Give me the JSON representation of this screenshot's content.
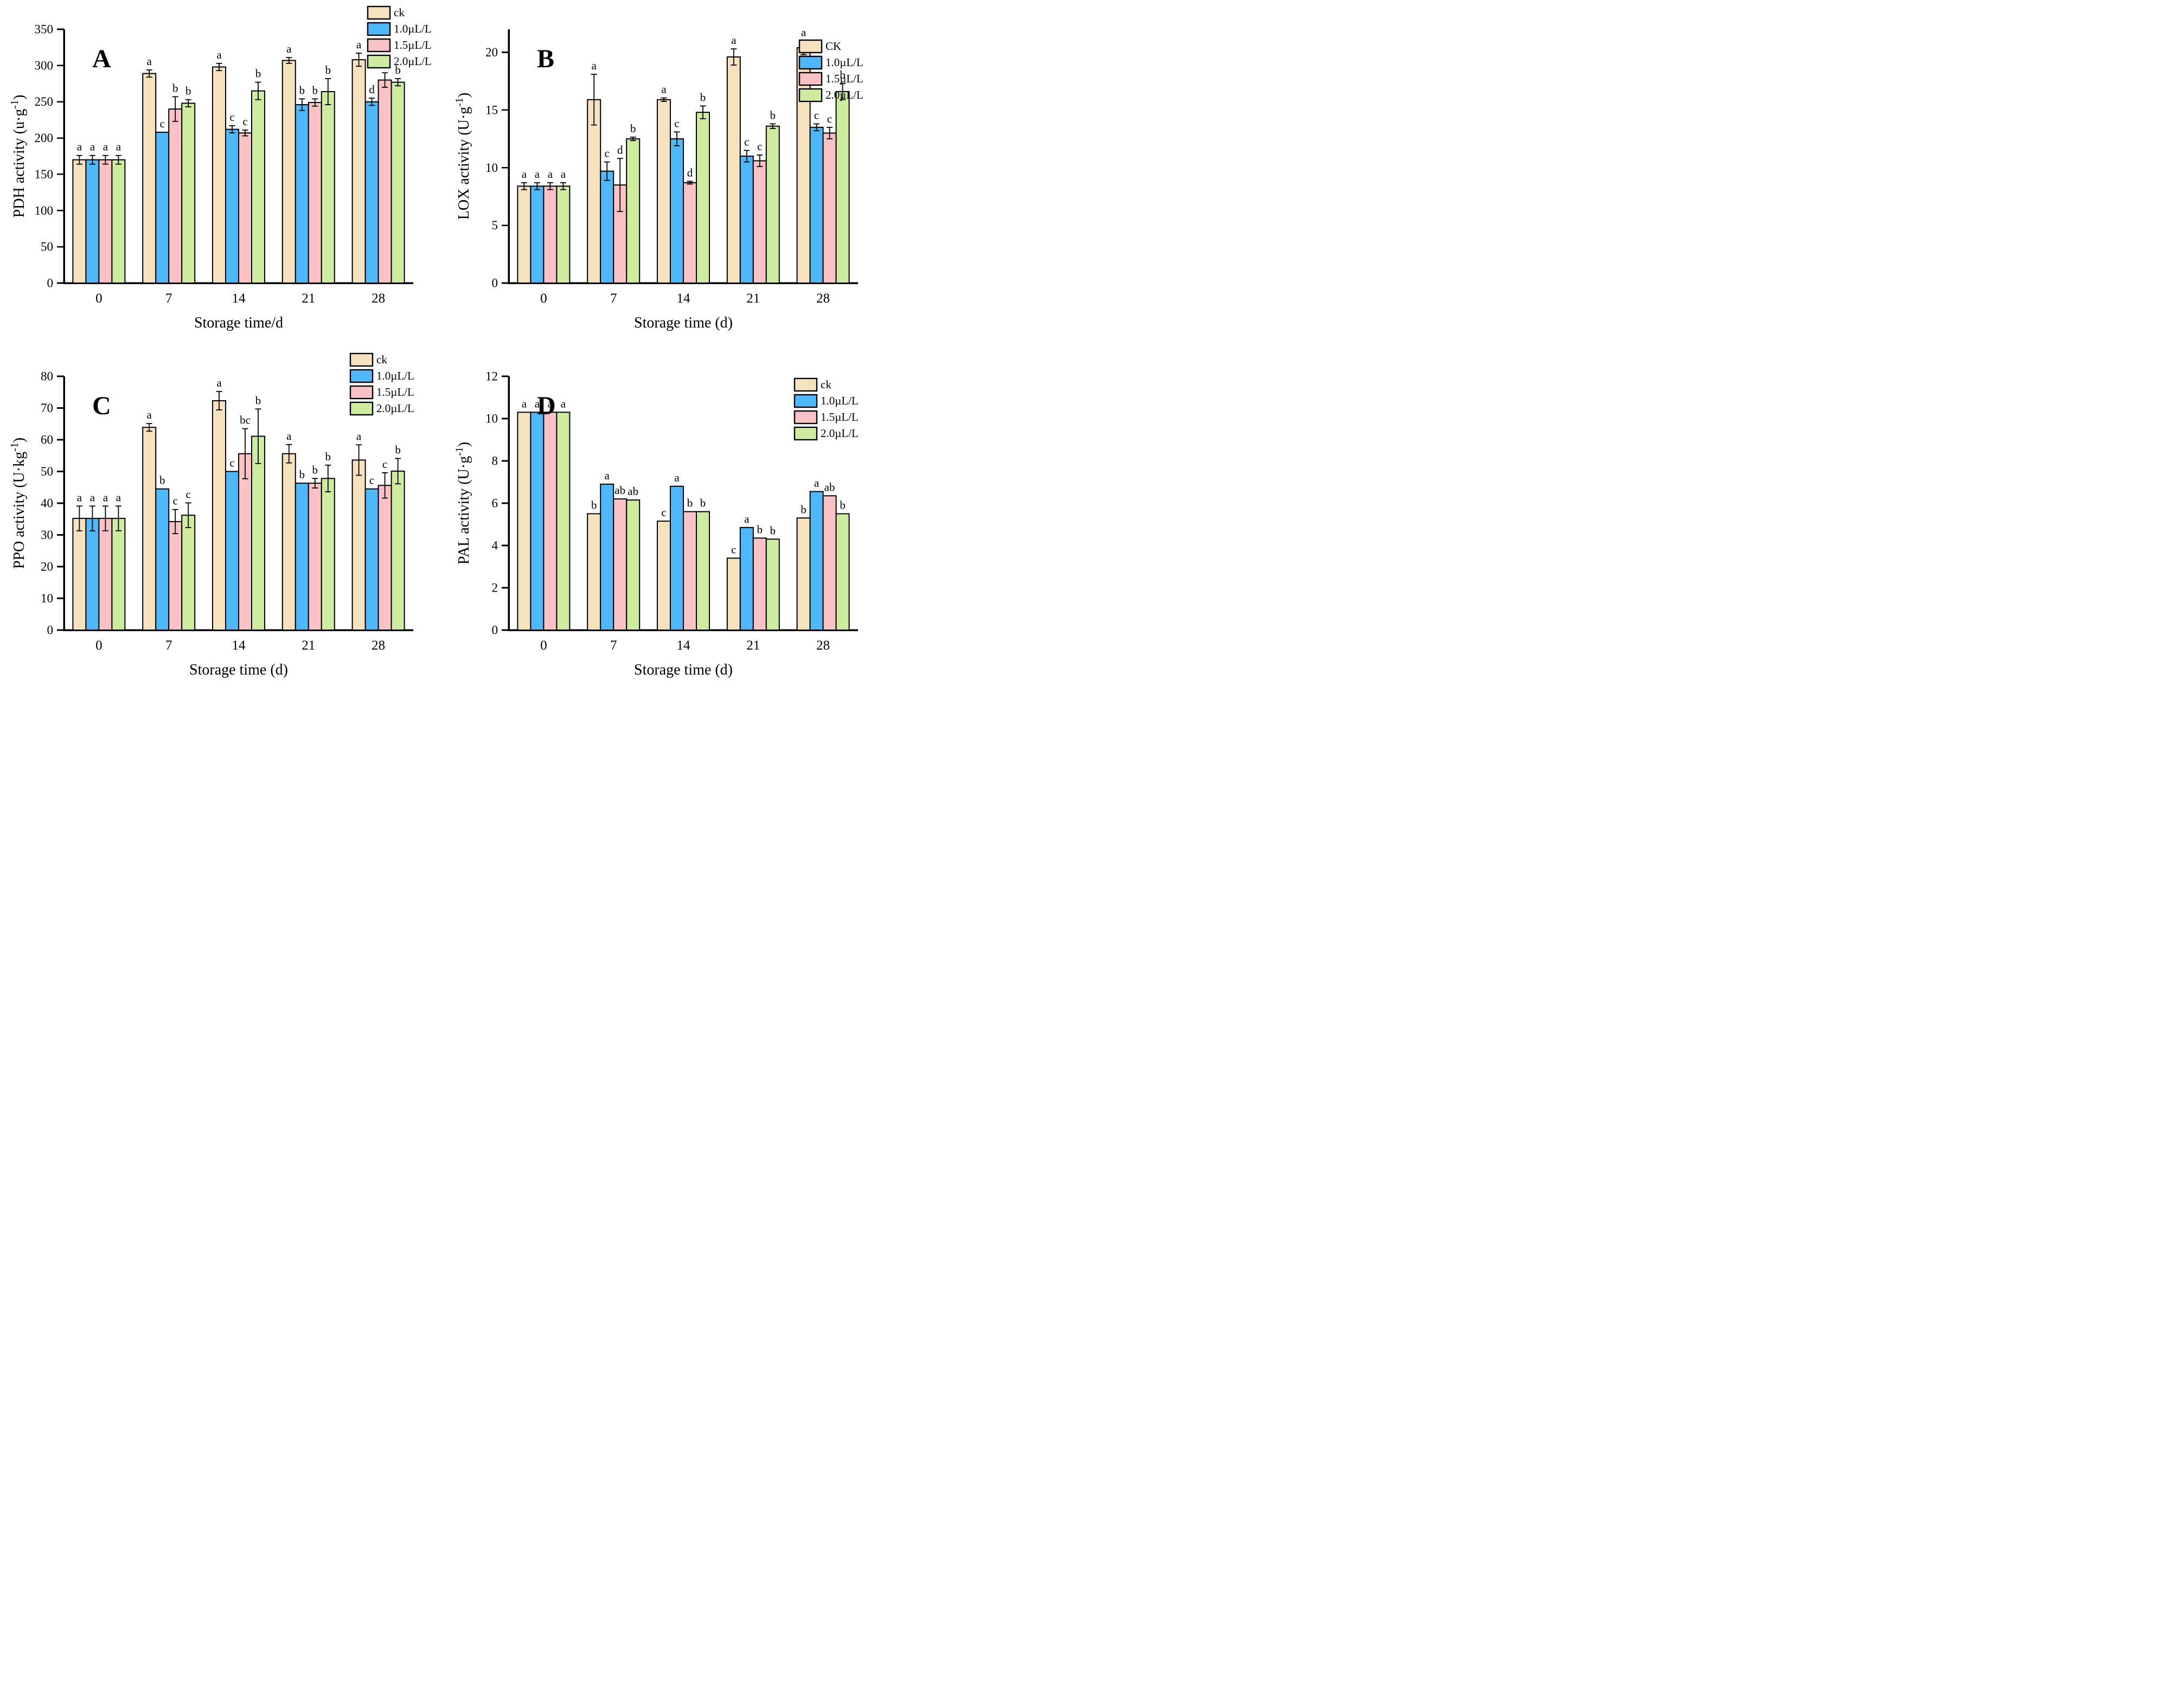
{
  "figure": {
    "background": "#ffffff",
    "text_color": "#000000"
  },
  "colors": {
    "ck": "#F6E3BD",
    "blue": "#4DB9FB",
    "pink": "#FBC2C5",
    "green": "#CDEC9E",
    "outline": "#000000"
  },
  "chart_data": [
    {
      "type": "bar",
      "panel_label": "A",
      "title": "",
      "xlabel": "Storage time/d",
      "ylabel": "PDH activity (u·g⁻¹)",
      "categories": [
        "0",
        "7",
        "14",
        "21",
        "28"
      ],
      "ylim": [
        0,
        350
      ],
      "ytick_step": 50,
      "yticks": [
        0,
        50,
        100,
        150,
        200,
        250,
        300,
        350
      ],
      "grid": false,
      "legend_position": "top-right",
      "legend_items": [
        "ck",
        "1.0µL/L",
        "1.5µL/L",
        "2.0µL/L"
      ],
      "series": [
        {
          "name": "ck",
          "color_key": "ck",
          "values": [
            170,
            289,
            298,
            307,
            308
          ],
          "errors": [
            6,
            5,
            5,
            4,
            9
          ],
          "letters": [
            "a",
            "a",
            "a",
            "a",
            "a"
          ]
        },
        {
          "name": "1.0µL/L",
          "color_key": "blue",
          "values": [
            170,
            208,
            212,
            246,
            250
          ],
          "errors": [
            6,
            0,
            5,
            8,
            5
          ],
          "letters": [
            "a",
            "c",
            "c",
            "b",
            "d"
          ]
        },
        {
          "name": "1.5µL/L",
          "color_key": "pink",
          "values": [
            170,
            240,
            207,
            249,
            280
          ],
          "errors": [
            6,
            17,
            4,
            5,
            10
          ],
          "letters": [
            "a",
            "b",
            "c",
            "b",
            "c"
          ]
        },
        {
          "name": "2.0µL/L",
          "color_key": "green",
          "values": [
            170,
            248,
            265,
            264,
            277
          ],
          "errors": [
            6,
            5,
            12,
            18,
            5
          ],
          "letters": [
            "a",
            "b",
            "b",
            "b",
            "b"
          ]
        }
      ]
    },
    {
      "type": "bar",
      "panel_label": "B",
      "title": "",
      "xlabel": "Storage time (d)",
      "ylabel": "LOX activity (U·g⁻¹)",
      "categories": [
        "0",
        "7",
        "14",
        "21",
        "28"
      ],
      "ylim": [
        0,
        22
      ],
      "ytick_step": 5,
      "yticks": [
        0,
        5,
        10,
        15,
        20
      ],
      "grid": false,
      "legend_position": "inside-top-right",
      "legend_items": [
        "CK",
        "1.0µL/L",
        "1.5µL/L",
        "2.0µL/L"
      ],
      "series": [
        {
          "name": "CK",
          "color_key": "ck",
          "values": [
            8.4,
            15.9,
            15.9,
            19.6,
            20.4
          ],
          "errors": [
            0.3,
            2.2,
            0.15,
            0.7,
            0.6
          ],
          "letters": [
            "a",
            "a",
            "a",
            "a",
            "a"
          ]
        },
        {
          "name": "1.0µL/L",
          "color_key": "blue",
          "values": [
            8.4,
            9.7,
            12.5,
            11.0,
            13.5
          ],
          "errors": [
            0.3,
            0.8,
            0.6,
            0.5,
            0.3
          ],
          "letters": [
            "a",
            "c",
            "c",
            "c",
            "c"
          ]
        },
        {
          "name": "1.5µL/L",
          "color_key": "pink",
          "values": [
            8.4,
            8.5,
            8.7,
            10.6,
            13.0
          ],
          "errors": [
            0.3,
            2.3,
            0.12,
            0.5,
            0.5
          ],
          "letters": [
            "a",
            "d",
            "d",
            "c",
            "c"
          ]
        },
        {
          "name": "2.0µL/L",
          "color_key": "green",
          "values": [
            8.4,
            12.5,
            14.8,
            13.6,
            16.6
          ],
          "errors": [
            0.3,
            0.15,
            0.55,
            0.2,
            0.7
          ],
          "letters": [
            "a",
            "b",
            "b",
            "b",
            "b"
          ]
        }
      ]
    },
    {
      "type": "bar",
      "panel_label": "C",
      "title": "",
      "xlabel": "Storage time (d)",
      "ylabel": "PPO activity (U·kg⁻¹)",
      "categories": [
        "0",
        "7",
        "14",
        "21",
        "28"
      ],
      "ylim": [
        0,
        80
      ],
      "ytick_step": 10,
      "yticks": [
        0,
        10,
        20,
        30,
        40,
        50,
        60,
        70,
        80
      ],
      "grid": false,
      "legend_position": "top-right",
      "legend_items": [
        "ck",
        "1.0µL/L",
        "1.5µL/L",
        "2.0µL/L"
      ],
      "series": [
        {
          "name": "ck",
          "color_key": "ck",
          "values": [
            35.2,
            63.9,
            72.3,
            55.6,
            53.6
          ],
          "errors": [
            3.9,
            1.2,
            2.9,
            2.9,
            4.8
          ],
          "letters": [
            "a",
            "a",
            "a",
            "a",
            "a"
          ]
        },
        {
          "name": "1.0µL/L",
          "color_key": "blue",
          "values": [
            35.2,
            44.5,
            50.0,
            46.3,
            44.5
          ],
          "errors": [
            3.9,
            0,
            0,
            0,
            0
          ],
          "letters": [
            "a",
            "b",
            "c",
            "b",
            "c"
          ]
        },
        {
          "name": "1.5µL/L",
          "color_key": "pink",
          "values": [
            35.2,
            34.2,
            55.6,
            46.3,
            45.6
          ],
          "errors": [
            3.9,
            3.8,
            7.9,
            1.5,
            4.0
          ],
          "letters": [
            "a",
            "c",
            "bc",
            "b",
            "c"
          ]
        },
        {
          "name": "2.0µL/L",
          "color_key": "green",
          "values": [
            35.2,
            36.2,
            61.1,
            47.8,
            50.1
          ],
          "errors": [
            3.9,
            3.9,
            8.6,
            4.2,
            4.0
          ],
          "letters": [
            "a",
            "c",
            "b",
            "b",
            "b"
          ]
        }
      ]
    },
    {
      "type": "bar",
      "panel_label": "D",
      "title": "",
      "xlabel": "Storage time (d)",
      "ylabel": "PAL activity (U·g⁻¹)",
      "categories": [
        "0",
        "7",
        "14",
        "21",
        "28"
      ],
      "ylim": [
        0,
        12
      ],
      "ytick_step": 2,
      "yticks": [
        0,
        2,
        4,
        6,
        8,
        10,
        12
      ],
      "grid": false,
      "legend_position": "inside-top-right",
      "legend_items": [
        "ck",
        "1.0µL/L",
        "1.5µL/L",
        "2.0µL/L"
      ],
      "series": [
        {
          "name": "ck",
          "color_key": "ck",
          "values": [
            10.3,
            5.5,
            5.15,
            3.4,
            5.3
          ],
          "errors": [
            0,
            0,
            0,
            0,
            0
          ],
          "letters": [
            "a",
            "b",
            "c",
            "c",
            "b"
          ]
        },
        {
          "name": "1.0µL/L",
          "color_key": "blue",
          "values": [
            10.3,
            6.9,
            6.8,
            4.85,
            6.55
          ],
          "errors": [
            0,
            0,
            0,
            0,
            0
          ],
          "letters": [
            "a",
            "a",
            "a",
            "a",
            "a"
          ]
        },
        {
          "name": "1.5µL/L",
          "color_key": "pink",
          "values": [
            10.3,
            6.2,
            5.6,
            4.35,
            6.35
          ],
          "errors": [
            0,
            0,
            0,
            0,
            0
          ],
          "letters": [
            "a",
            "ab",
            "b",
            "b",
            "ab"
          ]
        },
        {
          "name": "2.0µL/L",
          "color_key": "green",
          "values": [
            10.3,
            6.15,
            5.6,
            4.3,
            5.5
          ],
          "errors": [
            0,
            0,
            0,
            0,
            0
          ],
          "letters": [
            "a",
            "ab",
            "b",
            "b",
            "b"
          ]
        }
      ]
    }
  ]
}
